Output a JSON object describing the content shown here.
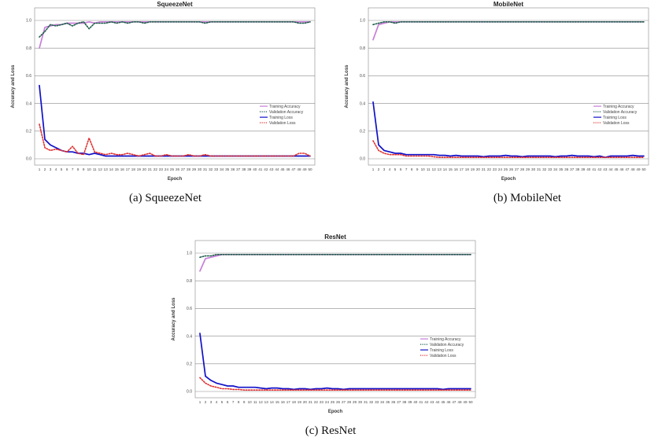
{
  "chart_data": [
    {
      "type": "line",
      "title": "SqueezeNet",
      "xlabel": "Epoch",
      "ylabel": "Accuracy and Loss",
      "ylim": [
        0,
        1.0
      ],
      "yticks": [
        "0.0",
        "0.2",
        "0.4",
        "0.6",
        "0.8",
        "1.0"
      ],
      "x": [
        1,
        2,
        3,
        4,
        5,
        6,
        7,
        8,
        9,
        10,
        11,
        12,
        13,
        14,
        15,
        16,
        17,
        18,
        19,
        20,
        21,
        22,
        23,
        24,
        25,
        26,
        27,
        28,
        29,
        30,
        31,
        32,
        33,
        34,
        35,
        36,
        37,
        38,
        39,
        40,
        41,
        42,
        43,
        44,
        45,
        46,
        47,
        48,
        49,
        50
      ],
      "legend_position": "right",
      "series": [
        {
          "name": "Training Accuracy",
          "color": "#c77fd9",
          "dash": "solid",
          "values": [
            0.8,
            0.95,
            0.96,
            0.97,
            0.97,
            0.98,
            0.98,
            0.98,
            0.98,
            0.99,
            0.98,
            0.99,
            0.99,
            0.99,
            0.99,
            0.99,
            0.99,
            0.99,
            0.99,
            0.99,
            0.99,
            0.99,
            0.99,
            0.99,
            0.99,
            0.99,
            0.99,
            0.99,
            0.99,
            0.99,
            0.99,
            0.99,
            0.99,
            0.99,
            0.99,
            0.99,
            0.99,
            0.99,
            0.99,
            0.99,
            0.99,
            0.99,
            0.99,
            0.99,
            0.99,
            0.99,
            0.99,
            0.99,
            0.99,
            0.99
          ]
        },
        {
          "name": "Validation Accuracy",
          "color": "#1d5e4a",
          "dash": "dotted",
          "values": [
            0.88,
            0.92,
            0.97,
            0.96,
            0.97,
            0.98,
            0.96,
            0.98,
            0.99,
            0.94,
            0.98,
            0.98,
            0.98,
            0.99,
            0.98,
            0.99,
            0.98,
            0.99,
            0.99,
            0.98,
            0.99,
            0.99,
            0.99,
            0.99,
            0.99,
            0.99,
            0.99,
            0.99,
            0.99,
            0.99,
            0.98,
            0.99,
            0.99,
            0.99,
            0.99,
            0.99,
            0.99,
            0.99,
            0.99,
            0.99,
            0.99,
            0.99,
            0.99,
            0.99,
            0.99,
            0.99,
            0.99,
            0.98,
            0.98,
            0.99
          ]
        },
        {
          "name": "Training Loss",
          "color": "#1010c8",
          "dash": "solid",
          "values": [
            0.53,
            0.14,
            0.1,
            0.08,
            0.06,
            0.05,
            0.05,
            0.04,
            0.04,
            0.03,
            0.04,
            0.03,
            0.02,
            0.02,
            0.02,
            0.02,
            0.02,
            0.02,
            0.02,
            0.02,
            0.02,
            0.02,
            0.02,
            0.02,
            0.02,
            0.02,
            0.02,
            0.02,
            0.02,
            0.02,
            0.02,
            0.02,
            0.02,
            0.02,
            0.02,
            0.02,
            0.02,
            0.02,
            0.02,
            0.02,
            0.02,
            0.02,
            0.02,
            0.02,
            0.02,
            0.02,
            0.02,
            0.02,
            0.02,
            0.02
          ]
        },
        {
          "name": "Validation Loss",
          "color": "#e03030",
          "dash": "dotted",
          "values": [
            0.25,
            0.08,
            0.06,
            0.07,
            0.06,
            0.05,
            0.09,
            0.04,
            0.03,
            0.15,
            0.05,
            0.04,
            0.03,
            0.04,
            0.03,
            0.03,
            0.04,
            0.03,
            0.02,
            0.03,
            0.04,
            0.02,
            0.02,
            0.03,
            0.02,
            0.02,
            0.02,
            0.03,
            0.02,
            0.02,
            0.03,
            0.02,
            0.02,
            0.02,
            0.02,
            0.02,
            0.02,
            0.02,
            0.02,
            0.02,
            0.02,
            0.02,
            0.02,
            0.02,
            0.02,
            0.02,
            0.02,
            0.04,
            0.04,
            0.02
          ]
        }
      ]
    },
    {
      "type": "line",
      "title": "MobileNet",
      "xlabel": "Epoch",
      "ylabel": "Accuracy and Loss",
      "ylim": [
        0,
        1.0
      ],
      "yticks": [
        "0.0",
        "0.2",
        "0.4",
        "0.6",
        "0.8",
        "1.0"
      ],
      "x": [
        1,
        2,
        3,
        4,
        5,
        6,
        7,
        8,
        9,
        10,
        11,
        12,
        13,
        14,
        15,
        16,
        17,
        18,
        19,
        20,
        21,
        22,
        23,
        24,
        25,
        26,
        27,
        28,
        29,
        30,
        31,
        32,
        33,
        34,
        35,
        36,
        37,
        38,
        39,
        40,
        41,
        42,
        43,
        44,
        45,
        46,
        47,
        48,
        49,
        50
      ],
      "legend_position": "right",
      "series": [
        {
          "name": "Training Accuracy",
          "color": "#c77fd9",
          "dash": "solid",
          "values": [
            0.86,
            0.97,
            0.98,
            0.99,
            0.99,
            0.99,
            0.99,
            0.99,
            0.99,
            0.99,
            0.99,
            0.99,
            0.99,
            0.99,
            0.99,
            0.99,
            0.99,
            0.99,
            0.99,
            0.99,
            0.99,
            0.99,
            0.99,
            0.99,
            0.99,
            0.99,
            0.99,
            0.99,
            0.99,
            0.99,
            0.99,
            0.99,
            0.99,
            0.99,
            0.99,
            0.99,
            0.99,
            0.99,
            0.99,
            0.99,
            0.99,
            0.99,
            0.99,
            0.99,
            0.99,
            0.99,
            0.99,
            0.99,
            0.99,
            0.99
          ]
        },
        {
          "name": "Validation Accuracy",
          "color": "#1d5e4a",
          "dash": "dotted",
          "values": [
            0.97,
            0.98,
            0.99,
            0.99,
            0.98,
            0.99,
            0.99,
            0.99,
            0.99,
            0.99,
            0.99,
            0.99,
            0.99,
            0.99,
            0.99,
            0.99,
            0.99,
            0.99,
            0.99,
            0.99,
            0.99,
            0.99,
            0.99,
            0.99,
            0.99,
            0.99,
            0.99,
            0.99,
            0.99,
            0.99,
            0.99,
            0.99,
            0.99,
            0.99,
            0.99,
            0.99,
            0.99,
            0.99,
            0.99,
            0.99,
            0.99,
            0.99,
            0.99,
            0.99,
            0.99,
            0.99,
            0.99,
            0.99,
            0.99,
            0.99
          ]
        },
        {
          "name": "Training Loss",
          "color": "#1010c8",
          "dash": "solid",
          "values": [
            0.41,
            0.1,
            0.06,
            0.05,
            0.04,
            0.04,
            0.03,
            0.03,
            0.03,
            0.03,
            0.03,
            0.03,
            0.025,
            0.025,
            0.02,
            0.025,
            0.02,
            0.02,
            0.02,
            0.02,
            0.015,
            0.02,
            0.02,
            0.02,
            0.025,
            0.02,
            0.02,
            0.015,
            0.02,
            0.02,
            0.02,
            0.02,
            0.02,
            0.015,
            0.02,
            0.02,
            0.025,
            0.02,
            0.02,
            0.02,
            0.015,
            0.02,
            0.01,
            0.02,
            0.02,
            0.02,
            0.02,
            0.025,
            0.02,
            0.02
          ]
        },
        {
          "name": "Validation Loss",
          "color": "#e03030",
          "dash": "dotted",
          "values": [
            0.13,
            0.06,
            0.04,
            0.03,
            0.03,
            0.03,
            0.02,
            0.02,
            0.02,
            0.02,
            0.02,
            0.015,
            0.01,
            0.01,
            0.01,
            0.01,
            0.01,
            0.01,
            0.01,
            0.01,
            0.01,
            0.01,
            0.01,
            0.01,
            0.01,
            0.01,
            0.01,
            0.01,
            0.01,
            0.01,
            0.01,
            0.01,
            0.01,
            0.01,
            0.01,
            0.01,
            0.01,
            0.01,
            0.01,
            0.01,
            0.01,
            0.01,
            0.01,
            0.01,
            0.01,
            0.01,
            0.01,
            0.01,
            0.01,
            0.01
          ]
        }
      ]
    },
    {
      "type": "line",
      "title": "ResNet",
      "xlabel": "Epoch",
      "ylabel": "Accuracy and Loss",
      "ylim": [
        0,
        1.0
      ],
      "yticks": [
        "0.0",
        "0.2",
        "0.4",
        "0.6",
        "0.8",
        "1.0"
      ],
      "x": [
        1,
        2,
        3,
        4,
        5,
        6,
        7,
        8,
        9,
        10,
        11,
        12,
        13,
        14,
        15,
        16,
        17,
        18,
        19,
        20,
        21,
        22,
        23,
        24,
        25,
        26,
        27,
        28,
        29,
        30,
        31,
        32,
        33,
        34,
        35,
        36,
        37,
        38,
        39,
        40,
        41,
        42,
        43,
        44,
        45,
        46,
        47,
        48,
        49,
        50
      ],
      "legend_position": "right",
      "series": [
        {
          "name": "Training Accuracy",
          "color": "#c77fd9",
          "dash": "solid",
          "values": [
            0.87,
            0.96,
            0.97,
            0.98,
            0.99,
            0.99,
            0.99,
            0.99,
            0.99,
            0.99,
            0.99,
            0.99,
            0.99,
            0.99,
            0.99,
            0.99,
            0.99,
            0.99,
            0.99,
            0.99,
            0.99,
            0.99,
            0.99,
            0.99,
            0.99,
            0.99,
            0.99,
            0.99,
            0.99,
            0.99,
            0.99,
            0.99,
            0.99,
            0.99,
            0.99,
            0.99,
            0.99,
            0.99,
            0.99,
            0.99,
            0.99,
            0.99,
            0.99,
            0.99,
            0.99,
            0.99,
            0.99,
            0.99,
            0.99,
            0.99
          ]
        },
        {
          "name": "Validation Accuracy",
          "color": "#1d5e4a",
          "dash": "dotted",
          "values": [
            0.97,
            0.98,
            0.98,
            0.99,
            0.99,
            0.99,
            0.99,
            0.99,
            0.99,
            0.99,
            0.99,
            0.99,
            0.99,
            0.99,
            0.99,
            0.99,
            0.99,
            0.99,
            0.99,
            0.99,
            0.99,
            0.99,
            0.99,
            0.99,
            0.99,
            0.99,
            0.99,
            0.99,
            0.99,
            0.99,
            0.99,
            0.99,
            0.99,
            0.99,
            0.99,
            0.99,
            0.99,
            0.99,
            0.99,
            0.99,
            0.99,
            0.99,
            0.99,
            0.99,
            0.99,
            0.99,
            0.99,
            0.99,
            0.99,
            0.99
          ]
        },
        {
          "name": "Training Loss",
          "color": "#1010c8",
          "dash": "solid",
          "values": [
            0.42,
            0.11,
            0.08,
            0.06,
            0.05,
            0.04,
            0.04,
            0.03,
            0.03,
            0.03,
            0.03,
            0.025,
            0.02,
            0.025,
            0.025,
            0.02,
            0.02,
            0.015,
            0.02,
            0.02,
            0.015,
            0.02,
            0.02,
            0.025,
            0.02,
            0.02,
            0.015,
            0.02,
            0.02,
            0.02,
            0.02,
            0.02,
            0.02,
            0.02,
            0.02,
            0.02,
            0.02,
            0.02,
            0.02,
            0.02,
            0.02,
            0.02,
            0.02,
            0.02,
            0.015,
            0.02,
            0.02,
            0.02,
            0.02,
            0.02
          ]
        },
        {
          "name": "Validation Loss",
          "color": "#e03030",
          "dash": "dotted",
          "values": [
            0.1,
            0.06,
            0.04,
            0.03,
            0.02,
            0.02,
            0.015,
            0.015,
            0.01,
            0.01,
            0.01,
            0.01,
            0.01,
            0.01,
            0.01,
            0.01,
            0.01,
            0.01,
            0.01,
            0.01,
            0.01,
            0.01,
            0.01,
            0.01,
            0.01,
            0.01,
            0.01,
            0.01,
            0.01,
            0.01,
            0.01,
            0.01,
            0.01,
            0.01,
            0.01,
            0.01,
            0.01,
            0.01,
            0.01,
            0.01,
            0.01,
            0.01,
            0.01,
            0.01,
            0.01,
            0.01,
            0.01,
            0.01,
            0.01,
            0.01
          ]
        }
      ]
    }
  ],
  "captions": [
    "(a)  SqueezeNet",
    "(b)  MobileNet",
    "(c)  ResNet"
  ]
}
